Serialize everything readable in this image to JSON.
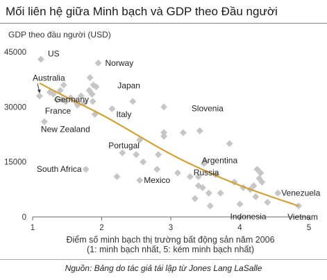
{
  "title": "Mối liên hệ giữa Minh bạch và GDP theo Đầu người",
  "source": "Nguồn: Bảng do tác giả tái lập từ Jones Lang LaSalle",
  "colors": {
    "point": "#c6c6c6",
    "trend": "#d4a030",
    "axis": "#666666",
    "text": "#222222"
  },
  "chart_data": {
    "type": "scatter",
    "ylabel": "GDP theo đầu người (USD)",
    "xlabel": "Điểm số minh bạch thị trường bất động sản năm 2006",
    "xlabel_note": "(1: minh bạch nhất, 5: kém minh bạch nhất)",
    "xlim": [
      1,
      5
    ],
    "ylim": [
      0,
      45000
    ],
    "xticks": [
      "1",
      "2",
      "3",
      "4",
      "5"
    ],
    "yticks": [
      "0",
      "15000",
      "30000",
      "45000"
    ],
    "labeled_points": [
      {
        "label": "US",
        "x": 1.12,
        "y": 43000
      },
      {
        "label": "Australia",
        "x": 1.1,
        "y": 33000
      },
      {
        "label": "Norway",
        "x": 1.95,
        "y": 42000
      },
      {
        "label": "France",
        "x": 1.35,
        "y": 32000
      },
      {
        "label": "Germany",
        "x": 1.65,
        "y": 30500
      },
      {
        "label": "Japan",
        "x": 2.45,
        "y": 31500
      },
      {
        "label": "Italy",
        "x": 2.15,
        "y": 29500
      },
      {
        "label": "New Zealand",
        "x": 1.17,
        "y": 26000
      },
      {
        "label": "Slovenia",
        "x": 3.42,
        "y": 23500
      },
      {
        "label": "Portugal",
        "x": 2.55,
        "y": 21000
      },
      {
        "label": "Argentina",
        "x": 3.48,
        "y": 14500
      },
      {
        "label": "South Africa",
        "x": 1.77,
        "y": 13000
      },
      {
        "label": "Mexico",
        "x": 2.55,
        "y": 10000
      },
      {
        "label": "Russia",
        "x": 3.4,
        "y": 11000
      },
      {
        "label": "Venezuela",
        "x": 4.55,
        "y": 6500
      },
      {
        "label": "Indonesia",
        "x": 4.0,
        "y": 3500
      },
      {
        "label": "Vietnam",
        "x": 4.85,
        "y": 3000
      }
    ],
    "points": [
      {
        "x": 1.25,
        "y": 34000
      },
      {
        "x": 1.3,
        "y": 33500
      },
      {
        "x": 1.4,
        "y": 34500
      },
      {
        "x": 1.45,
        "y": 36000
      },
      {
        "x": 1.42,
        "y": 32000
      },
      {
        "x": 1.48,
        "y": 31500
      },
      {
        "x": 1.55,
        "y": 32500
      },
      {
        "x": 1.62,
        "y": 31500
      },
      {
        "x": 1.7,
        "y": 33000
      },
      {
        "x": 1.75,
        "y": 31000
      },
      {
        "x": 1.83,
        "y": 38000
      },
      {
        "x": 1.82,
        "y": 34500
      },
      {
        "x": 1.86,
        "y": 33500
      },
      {
        "x": 1.87,
        "y": 31500
      },
      {
        "x": 1.92,
        "y": 35500
      },
      {
        "x": 1.88,
        "y": 36000
      },
      {
        "x": 1.9,
        "y": 28000
      },
      {
        "x": 2.22,
        "y": 11000
      },
      {
        "x": 2.3,
        "y": 17500
      },
      {
        "x": 2.5,
        "y": 17000
      },
      {
        "x": 2.6,
        "y": 15000
      },
      {
        "x": 2.8,
        "y": 13000
      },
      {
        "x": 2.82,
        "y": 17000
      },
      {
        "x": 2.9,
        "y": 30000
      },
      {
        "x": 2.9,
        "y": 23000
      },
      {
        "x": 2.9,
        "y": 22000
      },
      {
        "x": 3.1,
        "y": 12000
      },
      {
        "x": 3.18,
        "y": 23000
      },
      {
        "x": 3.28,
        "y": 11000
      },
      {
        "x": 3.35,
        "y": 5000
      },
      {
        "x": 3.4,
        "y": 8500
      },
      {
        "x": 3.46,
        "y": 8000
      },
      {
        "x": 3.5,
        "y": 15000
      },
      {
        "x": 3.55,
        "y": 6500
      },
      {
        "x": 3.57,
        "y": 3000
      },
      {
        "x": 3.65,
        "y": 11500
      },
      {
        "x": 3.72,
        "y": 6500
      },
      {
        "x": 3.85,
        "y": 20000
      },
      {
        "x": 3.92,
        "y": 9500
      },
      {
        "x": 4.05,
        "y": 8000
      },
      {
        "x": 4.15,
        "y": 7500
      },
      {
        "x": 4.2,
        "y": 8500
      },
      {
        "x": 4.23,
        "y": 5500
      },
      {
        "x": 4.25,
        "y": 13000
      },
      {
        "x": 4.28,
        "y": 10500
      },
      {
        "x": 4.3,
        "y": 12000
      },
      {
        "x": 4.32,
        "y": 9500
      },
      {
        "x": 4.4,
        "y": 4000
      }
    ],
    "trend": [
      {
        "x": 1.1,
        "y": 36500
      },
      {
        "x": 1.5,
        "y": 32500
      },
      {
        "x": 2.0,
        "y": 28000
      },
      {
        "x": 2.5,
        "y": 22500
      },
      {
        "x": 3.0,
        "y": 17000
      },
      {
        "x": 3.5,
        "y": 12500
      },
      {
        "x": 4.0,
        "y": 8500
      },
      {
        "x": 4.5,
        "y": 5200
      },
      {
        "x": 4.85,
        "y": 3000
      }
    ]
  }
}
